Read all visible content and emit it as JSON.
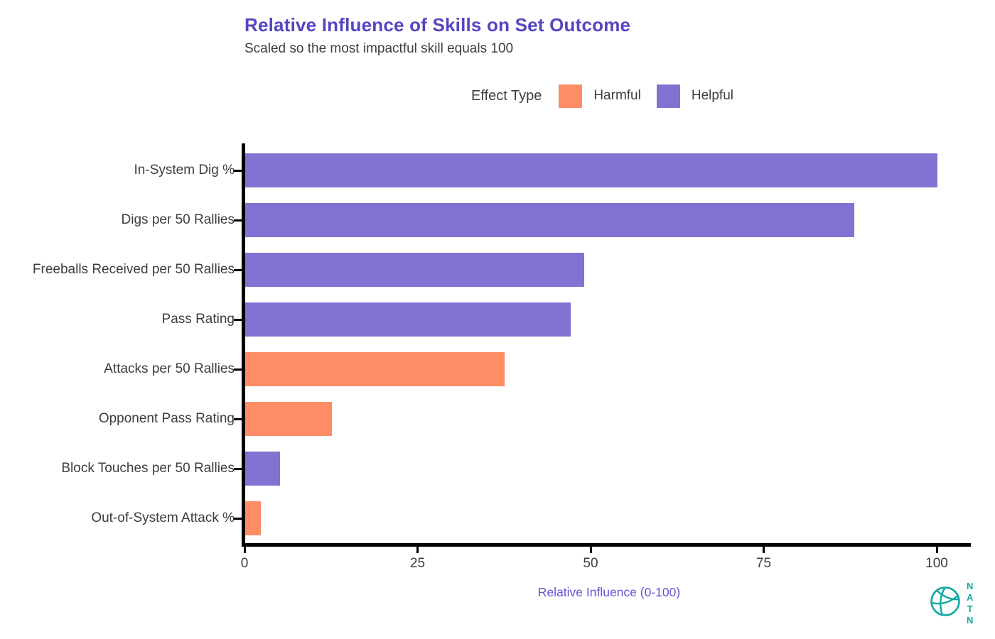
{
  "header": {
    "title": "Relative Influence of Skills on Set Outcome",
    "subtitle": "Scaled so the most impactful skill equals 100"
  },
  "legend": {
    "label": "Effect Type",
    "items": [
      {
        "label": "Harmful",
        "effect": "Harmful"
      },
      {
        "label": "Helpful",
        "effect": "Helpful"
      }
    ]
  },
  "chart_data": {
    "type": "bar",
    "orientation": "horizontal",
    "title": "Relative Influence of Skills on Set Outcome",
    "subtitle": "Scaled so the most impactful skill equals 100",
    "xlabel": "Relative Influence (0-100)",
    "ylabel": "",
    "xlim": [
      0,
      100
    ],
    "xticks": [
      0,
      25,
      50,
      75,
      100
    ],
    "grid": false,
    "legend_title": "Effect Type",
    "legend_position": "top",
    "categories": [
      "In-System Dig %",
      "Digs per 50 Rallies",
      "Freeballs Received per 50 Rallies",
      "Pass Rating",
      "Attacks per 50 Rallies",
      "Opponent Pass Rating",
      "Block Touches per 50 Rallies",
      "Out-of-System Attack %"
    ],
    "values": [
      100,
      88,
      49,
      47,
      37.5,
      12.5,
      5,
      2.3
    ],
    "effects": [
      "Helpful",
      "Helpful",
      "Helpful",
      "Helpful",
      "Harmful",
      "Harmful",
      "Helpful",
      "Harmful"
    ],
    "colors": {
      "Harmful": "#fc8d64",
      "Helpful": "#8073d1"
    },
    "xtick_labels": [
      "0",
      "25",
      "50",
      "75",
      "100"
    ]
  },
  "logo": {
    "text": "NATN",
    "color": "#0fa8a2",
    "icon": "volleyball-icon"
  }
}
